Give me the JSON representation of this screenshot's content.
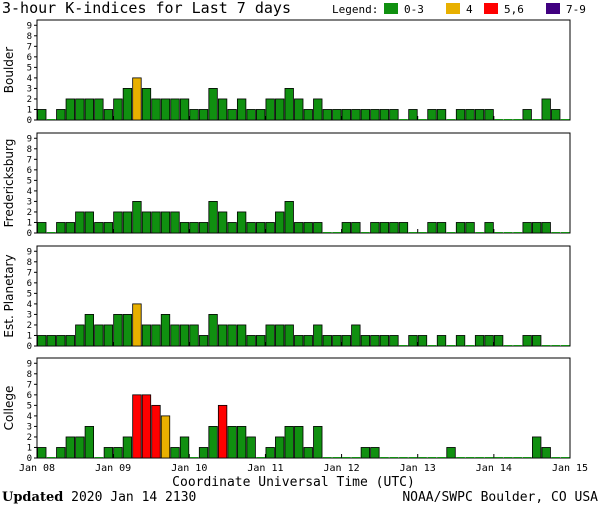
{
  "title": "3-hour K-indices for Last 7 days",
  "legend": {
    "label": "Legend:",
    "items": [
      {
        "label": "0-3",
        "color": "#109010"
      },
      {
        "label": "4",
        "color": "#e8b000"
      },
      {
        "label": "5,6",
        "color": "#ff0000"
      },
      {
        "label": "7-9",
        "color": "#400080"
      }
    ]
  },
  "footer": {
    "updated_label": "Updated",
    "updated_value": "2020 Jan 14 2130",
    "source": "NOAA/SWPC Boulder, CO USA"
  },
  "chart_data": {
    "type": "bar",
    "xlabel": "Coordinate Universal Time (UTC)",
    "x_ticks": [
      "Jan 08",
      "Jan 09",
      "Jan 10",
      "Jan 11",
      "Jan 12",
      "Jan 13",
      "Jan 14",
      "Jan 15"
    ],
    "y_ticks": [
      "0",
      "1",
      "2",
      "3",
      "4",
      "5",
      "6",
      "7",
      "8",
      "9"
    ],
    "ylim": [
      0,
      9
    ],
    "grid": false,
    "color_scale": {
      "low": "#109010",
      "k4": "#e8b000",
      "k56": "#ff0000",
      "k79": "#400080"
    },
    "panels": [
      {
        "name": "Boulder",
        "values": [
          1,
          0,
          1,
          2,
          2,
          2,
          2,
          1,
          2,
          3,
          4,
          3,
          2,
          2,
          2,
          2,
          1,
          1,
          3,
          2,
          1,
          2,
          1,
          1,
          2,
          2,
          3,
          2,
          1,
          2,
          1,
          1,
          1,
          1,
          1,
          1,
          1,
          1,
          0,
          1,
          0,
          1,
          1,
          0,
          1,
          1,
          1,
          1,
          0,
          0,
          0,
          1,
          0,
          2,
          1,
          0
        ]
      },
      {
        "name": "Fredericksburg",
        "values": [
          1,
          0,
          1,
          1,
          2,
          2,
          1,
          1,
          2,
          2,
          3,
          2,
          2,
          2,
          2,
          1,
          1,
          1,
          3,
          2,
          1,
          2,
          1,
          1,
          1,
          2,
          3,
          1,
          1,
          1,
          0,
          0,
          1,
          1,
          0,
          1,
          1,
          1,
          1,
          0,
          0,
          1,
          1,
          0,
          1,
          1,
          0,
          1,
          0,
          0,
          0,
          1,
          1,
          1,
          0,
          0
        ]
      },
      {
        "name": "Est. Planetary",
        "values": [
          1,
          1,
          1,
          1,
          2,
          3,
          2,
          2,
          3,
          3,
          4,
          2,
          2,
          3,
          2,
          2,
          2,
          1,
          3,
          2,
          2,
          2,
          1,
          1,
          2,
          2,
          2,
          1,
          1,
          2,
          1,
          1,
          1,
          2,
          1,
          1,
          1,
          1,
          0,
          1,
          1,
          0,
          1,
          0,
          1,
          0,
          1,
          1,
          1,
          0,
          0,
          1,
          1,
          0,
          0,
          0
        ]
      },
      {
        "name": "College",
        "values": [
          1,
          0,
          1,
          2,
          2,
          3,
          0,
          1,
          1,
          2,
          6,
          6,
          5,
          4,
          1,
          2,
          0,
          1,
          3,
          5,
          3,
          3,
          2,
          0,
          1,
          2,
          3,
          3,
          1,
          3,
          0,
          0,
          0,
          0,
          1,
          1,
          0,
          0,
          0,
          0,
          0,
          0,
          0,
          1,
          0,
          0,
          0,
          0,
          0,
          0,
          0,
          0,
          2,
          1,
          0,
          0
        ]
      }
    ]
  }
}
